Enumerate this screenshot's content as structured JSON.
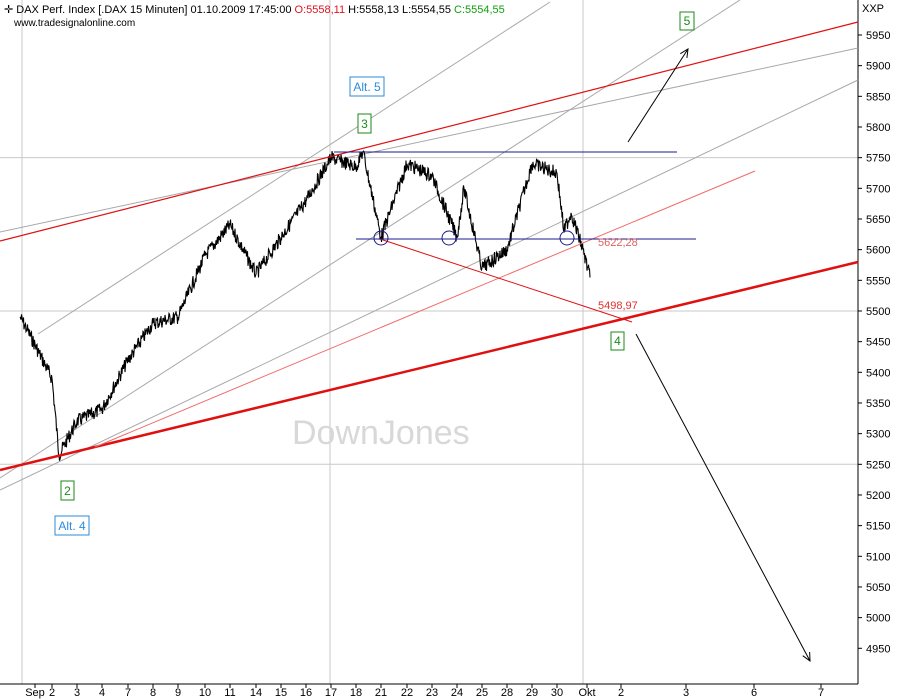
{
  "header": {
    "instrument": "DAX Perf. Index [.DAX  15 Minuten]",
    "datetime": "01.10.2009 17:45:00",
    "open_label": "O:5558,11",
    "high_label": "H:5558,13",
    "low_label": "L:5554,55",
    "close_label": "C:5554,55",
    "source": "www.tradesignalonline.com",
    "axis_unit": "XXP"
  },
  "watermark": "DownJones",
  "chart_data": {
    "type": "line",
    "title": "DAX Perf. Index [.DAX  15 Minuten]",
    "xlabel": "",
    "ylabel": "",
    "ylim": [
      4910,
      5990
    ],
    "grid": "on",
    "y_ticks": [
      4950,
      5000,
      5050,
      5100,
      5150,
      5200,
      5250,
      5300,
      5350,
      5400,
      5450,
      5500,
      5550,
      5600,
      5650,
      5700,
      5750,
      5800,
      5850,
      5900,
      5950
    ],
    "x_tick_labels": [
      "Sep",
      "2",
      "3",
      "4",
      "7",
      "8",
      "9",
      "10",
      "11",
      "14",
      "15",
      "16",
      "17",
      "18",
      "21",
      "22",
      "23",
      "24",
      "25",
      "28",
      "29",
      "30",
      "Okt",
      "2",
      "3",
      "6",
      "7"
    ],
    "series": [
      {
        "values": [
          {
            "x": "01.09.2009",
            "y": 5490
          },
          {
            "x": "01.09.2009",
            "y": 5470
          },
          {
            "x": "02.09.2009",
            "y": 5390
          },
          {
            "x": "02.09.2009",
            "y": 5265
          },
          {
            "x": "03.09.2009",
            "y": 5320
          },
          {
            "x": "04.09.2009",
            "y": 5340
          },
          {
            "x": "07.09.2009",
            "y": 5420
          },
          {
            "x": "08.09.2009",
            "y": 5480
          },
          {
            "x": "09.09.2009",
            "y": 5490
          },
          {
            "x": "10.09.2009",
            "y": 5590
          },
          {
            "x": "11.09.2009",
            "y": 5640
          },
          {
            "x": "14.09.2009",
            "y": 5560
          },
          {
            "x": "15.09.2009",
            "y": 5620
          },
          {
            "x": "16.09.2009",
            "y": 5680
          },
          {
            "x": "17.09.2009",
            "y": 5750
          },
          {
            "x": "18.09.2009",
            "y": 5735
          },
          {
            "x": "18.09.2009",
            "y": 5760
          },
          {
            "x": "21.09.2009",
            "y": 5620
          },
          {
            "x": "22.09.2009",
            "y": 5740
          },
          {
            "x": "23.09.2009",
            "y": 5720
          },
          {
            "x": "24.09.2009",
            "y": 5620
          },
          {
            "x": "24.09.2009",
            "y": 5700
          },
          {
            "x": "25.09.2009",
            "y": 5570
          },
          {
            "x": "28.09.2009",
            "y": 5600
          },
          {
            "x": "29.09.2009",
            "y": 5740
          },
          {
            "x": "30.09.2009",
            "y": 5725
          },
          {
            "x": "30.09.2009",
            "y": 5630
          },
          {
            "x": "30.09.2009",
            "y": 5660
          },
          {
            "x": "01.10.2009",
            "y": 5600
          },
          {
            "x": "01.10.2009",
            "y": 5554.55
          }
        ]
      }
    ],
    "levels": [
      {
        "label": "5622,28",
        "value": 5622.28,
        "color": "#e06060"
      },
      {
        "label": "5498,97",
        "value": 5498.97,
        "color": "#e03030"
      }
    ],
    "wave_labels": [
      {
        "text": "5",
        "color": "#1a8a1a"
      },
      {
        "text": "Alt. 5",
        "color": "#2e8bd8"
      },
      {
        "text": "3",
        "color": "#1a8a1a"
      },
      {
        "text": "4",
        "color": "#1a8a1a"
      },
      {
        "text": "2",
        "color": "#1a8a1a"
      },
      {
        "text": "Alt. 4",
        "color": "#2e8bd8"
      }
    ],
    "colors": {
      "price": "#000000",
      "trend_red": "#e01010",
      "trend_blue": "#1a1a8c",
      "channel_gray": "#a8a8a8",
      "grid": "#c8c8c8"
    }
  }
}
